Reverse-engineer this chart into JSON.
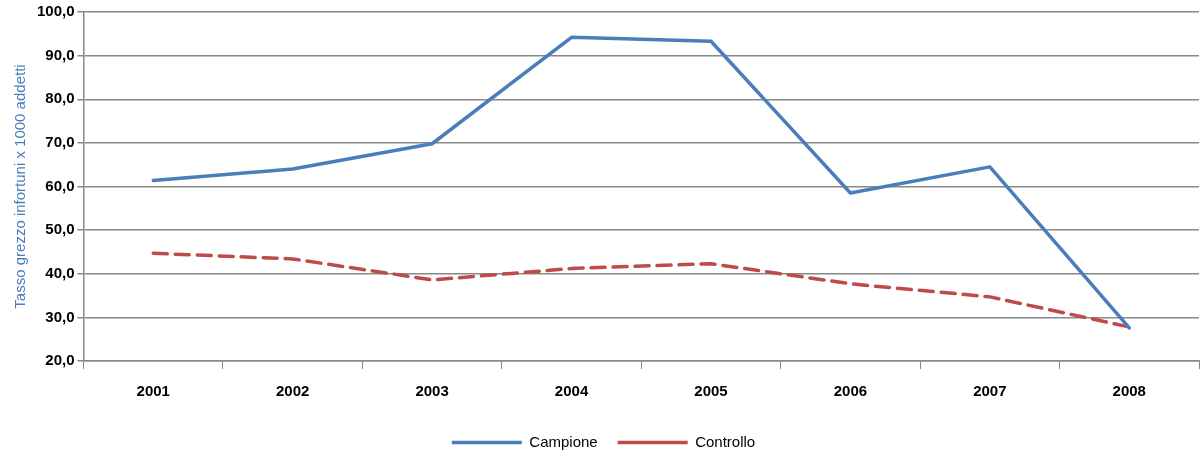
{
  "chart_data": {
    "type": "line",
    "ylabel": "Tasso grezzo infortuni x 1000 addetti",
    "categories": [
      "2001",
      "2002",
      "2003",
      "2004",
      "2005",
      "2006",
      "2007",
      "2008"
    ],
    "series": [
      {
        "name": "Campione",
        "color": "#4a7ebb",
        "line_style": "solid",
        "values": [
          61.4,
          64,
          69.8,
          94.2,
          93.3,
          58.5,
          64.5,
          27.6
        ]
      },
      {
        "name": "Controllo",
        "color": "#be4b48",
        "line_style": "dashed",
        "values": [
          44.7,
          43.4,
          38.6,
          41.2,
          42.3,
          37.7,
          34.7,
          27.8
        ]
      }
    ],
    "ylim": [
      20,
      100
    ],
    "yticks": [
      {
        "value": 20,
        "label": "20,0"
      },
      {
        "value": 30,
        "label": "30,0"
      },
      {
        "value": 40,
        "label": "40,0"
      },
      {
        "value": 50,
        "label": "50,0"
      },
      {
        "value": 60,
        "label": "60,0"
      },
      {
        "value": 70,
        "label": "70,0"
      },
      {
        "value": 80,
        "label": "80,0"
      },
      {
        "value": 90,
        "label": "90,0"
      },
      {
        "value": 100,
        "label": "100,0"
      }
    ],
    "grid": "y",
    "legend": "bottom",
    "marker": "none"
  }
}
